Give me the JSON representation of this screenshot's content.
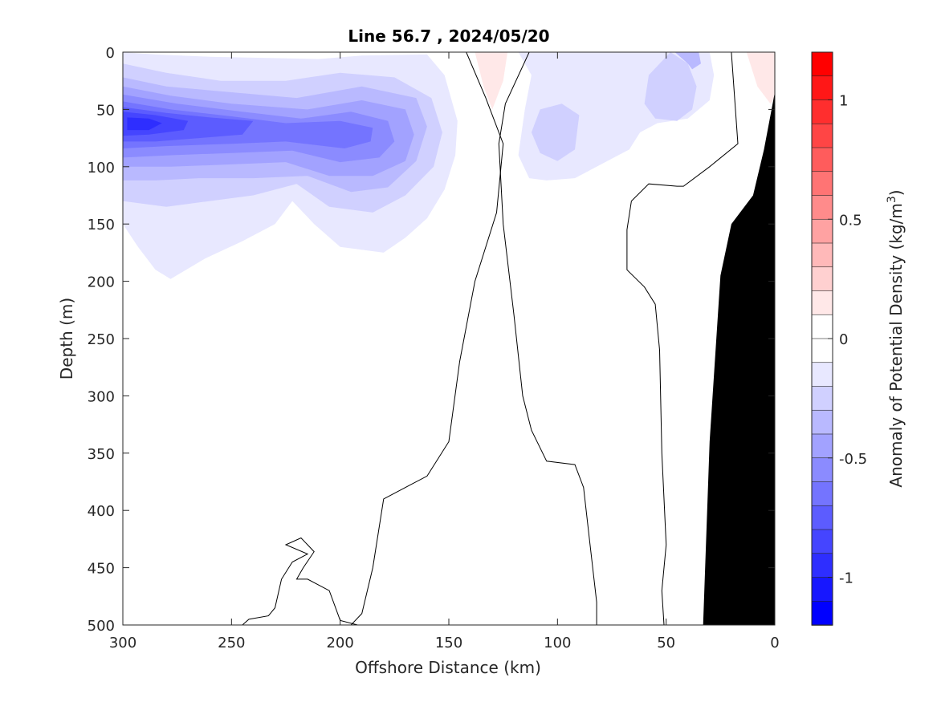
{
  "chart_data": {
    "type": "heatmap",
    "subtype": "filled-contour section",
    "title": "Line 56.7 , 2024/05/20",
    "xlabel": "Offshore Distance (km)",
    "ylabel": "Depth (m)",
    "xlim": [
      300,
      0
    ],
    "ylim": [
      500,
      0
    ],
    "x_reversed": true,
    "y_reversed": true,
    "xticks": [
      "300",
      "250",
      "200",
      "150",
      "100",
      "50",
      "0"
    ],
    "yticks": [
      "0",
      "50",
      "100",
      "150",
      "200",
      "250",
      "300",
      "350",
      "400",
      "450",
      "500"
    ],
    "colorbar": {
      "label": "Anomaly of Potential Density (kg/m",
      "label_superscript": "3",
      "label_suffix": ")",
      "range": [
        -1.2,
        1.2
      ],
      "step": 0.1,
      "ticks": [
        "1",
        "0.5",
        "0",
        "-0.5",
        "-1"
      ],
      "colors_top_to_bottom": [
        "#ff0000",
        "#ff1717",
        "#ff2e2e",
        "#ff4545",
        "#ff5c5c",
        "#ff7474",
        "#ff8b8b",
        "#ffa2a2",
        "#ffb9b9",
        "#ffd0d0",
        "#ffe8e8",
        "#ffffff",
        "#ffffff",
        "#e8e8ff",
        "#d0d0ff",
        "#b9b9ff",
        "#a2a2ff",
        "#8b8bff",
        "#7474ff",
        "#5c5cff",
        "#4545ff",
        "#2e2eff",
        "#1717ff",
        "#0000ff"
      ]
    },
    "features": [
      {
        "name": "negative anomaly core",
        "x_km": 290,
        "depth_m": 62,
        "value": -0.95
      },
      {
        "name": "secondary negative core",
        "x_km": 190,
        "depth_m": 68,
        "value": -0.65
      },
      {
        "name": "positive anomaly",
        "x_km": 130,
        "depth_m": 15,
        "value": 0.15
      },
      {
        "name": "positive anomaly",
        "x_km": 5,
        "depth_m": 15,
        "value": 0.15
      },
      {
        "name": "negative anomaly",
        "x_km": 95,
        "depth_m": 70,
        "value": -0.25
      },
      {
        "name": "negative anomaly",
        "x_km": 40,
        "depth_m": 25,
        "value": -0.3
      }
    ],
    "zero_contours_km_depth": [
      [
        [
          142,
          0
        ],
        [
          133,
          40
        ],
        [
          125,
          80
        ],
        [
          128,
          140
        ],
        [
          138,
          200
        ],
        [
          145,
          270
        ],
        [
          150,
          340
        ],
        [
          160,
          370
        ],
        [
          180,
          390
        ],
        [
          185,
          450
        ],
        [
          190,
          490
        ],
        [
          195,
          500
        ]
      ],
      [
        [
          113,
          0
        ],
        [
          124,
          45
        ],
        [
          127,
          80
        ],
        [
          125,
          150
        ],
        [
          120,
          230
        ],
        [
          116,
          300
        ],
        [
          112,
          330
        ],
        [
          105,
          357
        ],
        [
          92,
          360
        ],
        [
          88,
          380
        ],
        [
          85,
          430
        ],
        [
          82,
          480
        ],
        [
          82,
          500
        ]
      ],
      [
        [
          20,
          0
        ],
        [
          17,
          80
        ],
        [
          30,
          100
        ],
        [
          42,
          117
        ],
        [
          45,
          117
        ],
        [
          58,
          115
        ],
        [
          66,
          130
        ],
        [
          68,
          155
        ],
        [
          68,
          190
        ],
        [
          60,
          205
        ],
        [
          55,
          220
        ],
        [
          53,
          260
        ],
        [
          52,
          350
        ],
        [
          50,
          430
        ],
        [
          52,
          470
        ],
        [
          51,
          500
        ]
      ],
      [
        [
          245,
          500
        ],
        [
          242,
          495
        ],
        [
          233,
          492
        ],
        [
          230,
          485
        ],
        [
          227,
          460
        ],
        [
          222,
          445
        ],
        [
          215,
          438
        ],
        [
          225,
          430
        ],
        [
          218,
          424
        ],
        [
          212,
          436
        ],
        [
          217,
          450
        ],
        [
          220,
          460
        ],
        [
          215,
          460
        ],
        [
          205,
          470
        ],
        [
          200,
          496
        ],
        [
          192,
          500
        ]
      ]
    ],
    "bathymetry_km_depth": [
      [
        0,
        35
      ],
      [
        5,
        85
      ],
      [
        10,
        125
      ],
      [
        20,
        150
      ],
      [
        25,
        195
      ],
      [
        30,
        340
      ],
      [
        33,
        500
      ],
      [
        0,
        500
      ]
    ]
  }
}
